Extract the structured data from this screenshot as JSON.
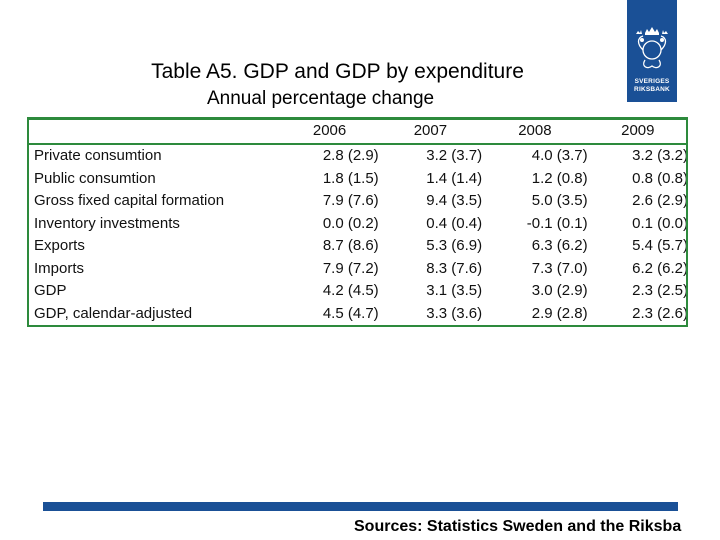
{
  "title": "Table A5. GDP and GDP by expenditure",
  "subtitle": "Annual percentage change",
  "logo": {
    "text_line1": "SVERIGES",
    "text_line2": "RIKSBANK",
    "color": "#1a5096"
  },
  "table": {
    "columns": [
      "2006",
      "2007",
      "2008",
      "2009"
    ],
    "rows": [
      {
        "label": "Private consumtion",
        "values": [
          "2.8 (2.9)",
          "3.2 (3.7)",
          "4.0 (3.7)",
          "3.2 (3.2)"
        ]
      },
      {
        "label": "Public consumtion",
        "values": [
          "1.8 (1.5)",
          "1.4 (1.4)",
          "1.2 (0.8)",
          "0.8 (0.8)"
        ]
      },
      {
        "label": "Gross fixed capital formation",
        "values": [
          "7.9 (7.6)",
          "9.4 (3.5)",
          "5.0 (3.5)",
          "2.6 (2.9)"
        ]
      },
      {
        "label": "Inventory investments",
        "values": [
          "0.0 (0.2)",
          "0.4 (0.4)",
          "-0.1 (0.1)",
          "0.1 (0.0)"
        ]
      },
      {
        "label": "Exports",
        "values": [
          "8.7 (8.6)",
          "5.3 (6.9)",
          "6.3 (6.2)",
          "5.4 (5.7)"
        ]
      },
      {
        "label": "Imports",
        "values": [
          "7.9 (7.2)",
          "8.3 (7.6)",
          "7.3 (7.0)",
          "6.2 (6.2)"
        ]
      },
      {
        "label": "GDP",
        "values": [
          "4.2 (4.5)",
          "3.1 (3.5)",
          "3.0 (2.9)",
          "2.3 (2.5)"
        ]
      },
      {
        "label": "GDP, calendar-adjusted",
        "values": [
          "4.5 (4.7)",
          "3.3 (3.6)",
          "2.9 (2.8)",
          "2.3 (2.6)"
        ]
      }
    ]
  },
  "footer": {
    "source": "Sources: Statistics Sweden and the Riksba",
    "bar_color": "#1a5096"
  },
  "colors": {
    "rule": "#2d8a3c",
    "text": "#111111"
  }
}
